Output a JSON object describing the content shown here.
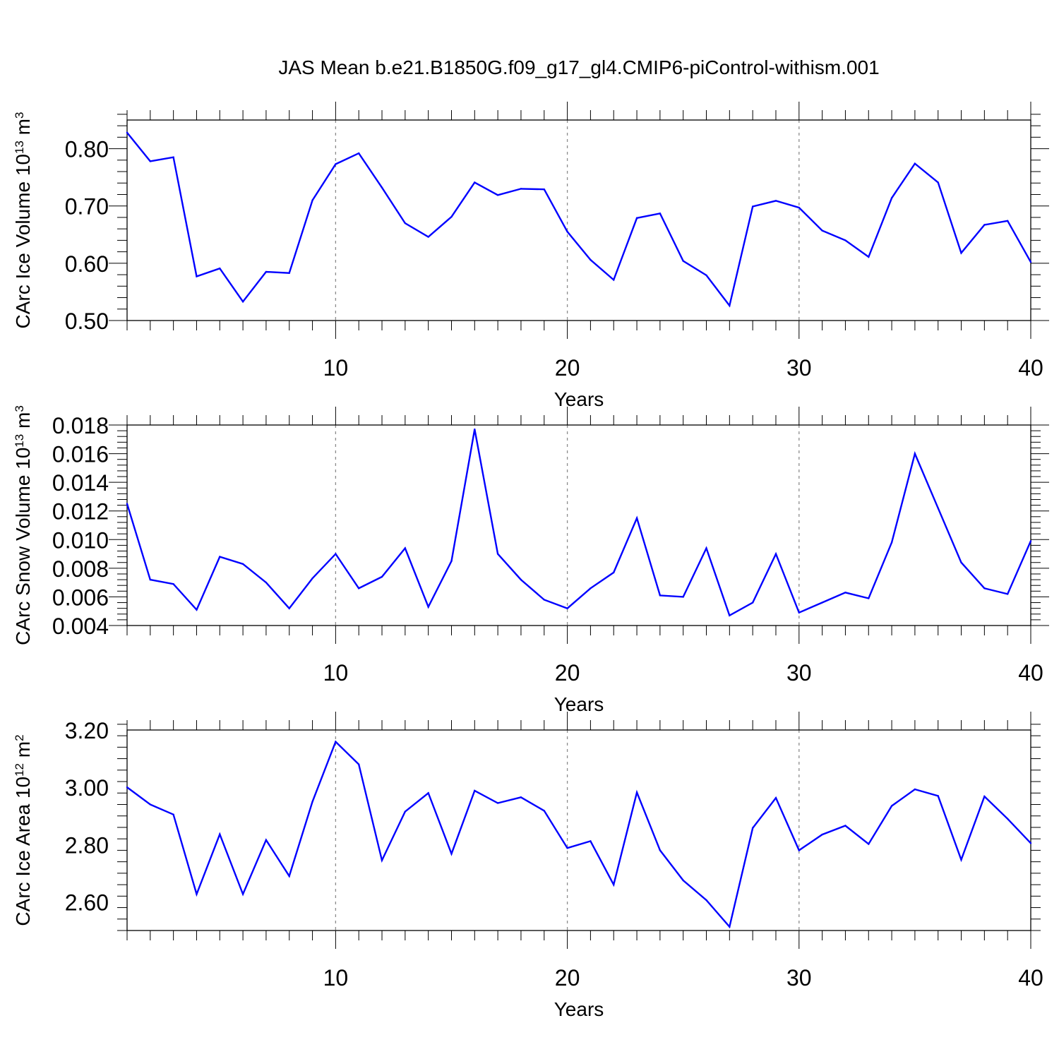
{
  "title": "JAS Mean b.e21.B1850G.f09_g17_gl4.CMIP6-piControl-withism.001",
  "colors": {
    "series": "#0000ff",
    "axis": "#000000",
    "grid": "#8c8c8c"
  },
  "chart_data": [
    {
      "type": "line",
      "title": "",
      "xlabel": "Years",
      "ylabel": {
        "main": "CArc Ice Volume 10",
        "exp": "13",
        "unit": " m",
        "unit_exp": "3"
      },
      "xlim": [
        1,
        40
      ],
      "ylim": [
        0.5,
        0.85
      ],
      "xticks": [
        10,
        20,
        30,
        40
      ],
      "yticks": [
        0.5,
        0.6,
        0.7,
        0.8
      ],
      "ytick_labels": [
        "0.50",
        "0.60",
        "0.70",
        "0.80"
      ],
      "grid": "vertical dashed at x ticks",
      "series": [
        {
          "x": [
            1,
            2,
            3,
            4,
            5,
            6,
            7,
            8,
            9,
            10,
            11,
            12,
            13,
            14,
            15,
            16,
            17,
            18,
            19,
            20,
            21,
            22,
            23,
            24,
            25,
            26,
            27,
            28,
            29,
            30,
            31,
            32,
            33,
            34,
            35,
            36,
            37,
            38,
            39,
            40
          ],
          "values": [
            0.828,
            0.778,
            0.785,
            0.577,
            0.591,
            0.533,
            0.585,
            0.583,
            0.71,
            0.773,
            0.792,
            0.732,
            0.67,
            0.646,
            0.681,
            0.741,
            0.719,
            0.73,
            0.729,
            0.655,
            0.606,
            0.571,
            0.679,
            0.687,
            0.604,
            0.579,
            0.526,
            0.699,
            0.709,
            0.697,
            0.657,
            0.64,
            0.611,
            0.714,
            0.774,
            0.741,
            0.618,
            0.667,
            0.674,
            0.602
          ]
        }
      ]
    },
    {
      "type": "line",
      "title": "",
      "xlabel": "Years",
      "ylabel": {
        "main": "CArc Snow Volume 10",
        "exp": "13",
        "unit": " m",
        "unit_exp": "3"
      },
      "xlim": [
        1,
        40
      ],
      "ylim": [
        0.004,
        0.018
      ],
      "xticks": [
        10,
        20,
        30,
        40
      ],
      "yticks": [
        0.004,
        0.006,
        0.008,
        0.01,
        0.012,
        0.014,
        0.016,
        0.018
      ],
      "ytick_labels": [
        "0.004",
        "0.006",
        "0.008",
        "0.010",
        "0.012",
        "0.014",
        "0.016",
        "0.018"
      ],
      "grid": "vertical dashed at x ticks",
      "series": [
        {
          "x": [
            1,
            2,
            3,
            4,
            5,
            6,
            7,
            8,
            9,
            10,
            11,
            12,
            13,
            14,
            15,
            16,
            17,
            18,
            19,
            20,
            21,
            22,
            23,
            24,
            25,
            26,
            27,
            28,
            29,
            30,
            31,
            32,
            33,
            34,
            35,
            36,
            37,
            38,
            39,
            40
          ],
          "values": [
            0.0125,
            0.0072,
            0.0069,
            0.0051,
            0.0088,
            0.0083,
            0.007,
            0.0052,
            0.0073,
            0.009,
            0.0066,
            0.0074,
            0.0094,
            0.0053,
            0.0085,
            0.0177,
            0.009,
            0.0072,
            0.0058,
            0.0052,
            0.0066,
            0.0077,
            0.0115,
            0.0061,
            0.006,
            0.0094,
            0.0047,
            0.0056,
            0.009,
            0.0049,
            0.0056,
            0.0063,
            0.0059,
            0.0098,
            0.016,
            0.0122,
            0.0084,
            0.0066,
            0.0062,
            0.0099
          ]
        }
      ]
    },
    {
      "type": "line",
      "title": "",
      "xlabel": "Years",
      "ylabel": {
        "main": "CArc Ice Area 10",
        "exp": "12",
        "unit": " m",
        "unit_exp": "2"
      },
      "xlim": [
        1,
        40
      ],
      "ylim": [
        2.5,
        3.2
      ],
      "xticks": [
        10,
        20,
        30,
        40
      ],
      "yticks": [
        2.6,
        2.8,
        3.0,
        3.2
      ],
      "ytick_labels": [
        "2.60",
        "2.80",
        "3.00",
        "3.20"
      ],
      "grid": "vertical dashed at x ticks",
      "series": [
        {
          "x": [
            1,
            2,
            3,
            4,
            5,
            6,
            7,
            8,
            9,
            10,
            11,
            12,
            13,
            14,
            15,
            16,
            17,
            18,
            19,
            20,
            21,
            22,
            23,
            24,
            25,
            26,
            27,
            28,
            29,
            30,
            31,
            32,
            33,
            34,
            35,
            36,
            37,
            38,
            39,
            40
          ],
          "values": [
            3.0,
            2.94,
            2.905,
            2.627,
            2.836,
            2.627,
            2.816,
            2.69,
            2.95,
            3.159,
            3.08,
            2.745,
            2.915,
            2.98,
            2.768,
            2.988,
            2.945,
            2.965,
            2.918,
            2.788,
            2.812,
            2.66,
            2.982,
            2.78,
            2.675,
            2.606,
            2.513,
            2.858,
            2.963,
            2.78,
            2.835,
            2.866,
            2.802,
            2.935,
            2.993,
            2.97,
            2.747,
            2.968,
            2.89,
            2.805
          ]
        }
      ]
    }
  ]
}
